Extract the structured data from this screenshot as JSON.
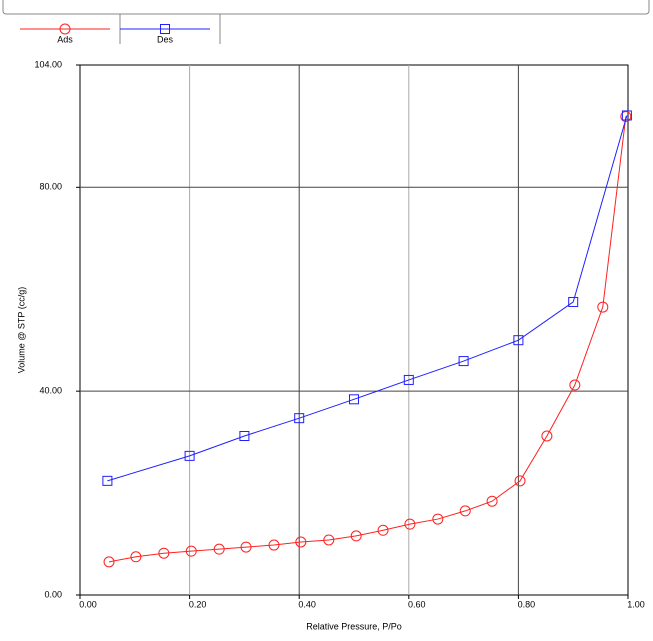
{
  "chart_data": {
    "type": "line",
    "x_label": "Relative Pressure, P/Po",
    "y_label": "Volume @ STP (cc/g)",
    "xlim": [
      0,
      1.0
    ],
    "ylim": [
      0,
      104
    ],
    "xticks": [
      {
        "value": 0,
        "label": "0.00"
      },
      {
        "value": 0.2,
        "label": "0.20"
      },
      {
        "value": 0.4,
        "label": "0.40"
      },
      {
        "value": 0.6,
        "label": "0.60"
      },
      {
        "value": 0.8,
        "label": "0.80"
      },
      {
        "value": 1.0,
        "label": "1.00"
      }
    ],
    "yticks": [
      {
        "value": 0,
        "label": "0.00"
      },
      {
        "value": 40,
        "label": "40.00"
      },
      {
        "value": 80,
        "label": "80.00"
      },
      {
        "value": 104,
        "label": "104.00"
      }
    ],
    "grid": true,
    "legend": "top-left",
    "series": [
      {
        "name": "Ads",
        "color": "#ff2020",
        "marker": "circle",
        "x": [
          0.053,
          0.102,
          0.153,
          0.203,
          0.254,
          0.303,
          0.354,
          0.403,
          0.454,
          0.504,
          0.553,
          0.602,
          0.653,
          0.703,
          0.752,
          0.803,
          0.852,
          0.903,
          0.954,
          0.996
        ],
        "values": [
          6.5,
          7.5,
          8.2,
          8.6,
          9.0,
          9.4,
          9.8,
          10.4,
          10.8,
          11.6,
          12.7,
          13.9,
          14.9,
          16.5,
          18.4,
          22.4,
          31.2,
          41.2,
          56.5,
          93.9
        ]
      },
      {
        "name": "Des",
        "color": "#2020ff",
        "marker": "square",
        "x": [
          0.05,
          0.2,
          0.3,
          0.4,
          0.5,
          0.6,
          0.7,
          0.8,
          0.9,
          0.998
        ],
        "values": [
          22.4,
          27.3,
          31.2,
          34.7,
          38.4,
          42.2,
          45.9,
          50.0,
          57.5,
          94.1
        ]
      }
    ]
  }
}
